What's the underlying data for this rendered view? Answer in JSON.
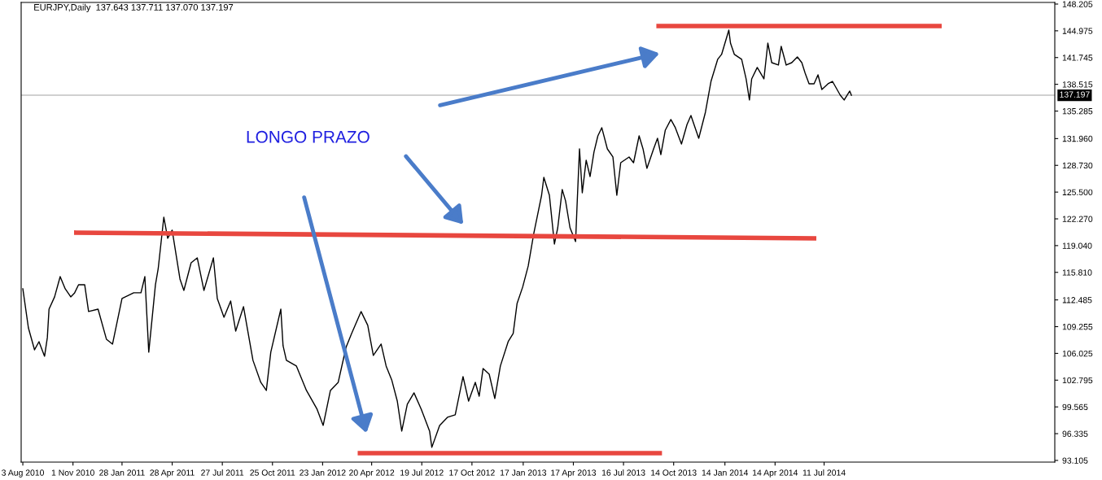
{
  "chart_data": {
    "type": "line",
    "title": "EURJPY,Daily  137.643 137.711 137.070 137.197",
    "annotations": [
      "LONGO PRAZO"
    ],
    "series": [
      {
        "color": "#000000",
        "x": [
          "2010-08-03",
          "2010-08-13",
          "2010-08-24",
          "2010-09-01",
          "2010-09-11",
          "2010-09-16",
          "2010-09-19",
          "2010-09-29",
          "2010-10-09",
          "2010-10-18",
          "2010-10-28",
          "2010-11-04",
          "2010-11-11",
          "2010-11-22",
          "2010-11-29",
          "2010-12-16",
          "2010-12-31",
          "2011-01-11",
          "2011-01-21",
          "2011-01-28",
          "2011-02-18",
          "2011-03-03",
          "2011-03-10",
          "2011-03-17",
          "2011-03-29",
          "2011-04-03",
          "2011-04-13",
          "2011-04-20",
          "2011-04-28",
          "2011-05-12",
          "2011-05-19",
          "2011-06-01",
          "2011-06-12",
          "2011-06-24",
          "2011-07-11",
          "2011-07-18",
          "2011-07-30",
          "2011-08-11",
          "2011-08-20",
          "2011-09-03",
          "2011-09-20",
          "2011-10-04",
          "2011-10-14",
          "2011-10-22",
          "2011-11-09",
          "2011-11-13",
          "2011-11-19",
          "2011-12-07",
          "2011-12-25",
          "2012-01-13",
          "2012-01-24",
          "2012-02-06",
          "2012-02-20",
          "2012-03-05",
          "2012-03-15",
          "2012-04-01",
          "2012-04-13",
          "2012-04-23",
          "2012-05-07",
          "2012-05-16",
          "2012-05-26",
          "2012-06-05",
          "2012-06-13",
          "2012-06-23",
          "2012-07-05",
          "2012-07-18",
          "2012-08-02",
          "2012-08-06",
          "2012-08-20",
          "2012-09-03",
          "2012-09-17",
          "2012-10-01",
          "2012-10-11",
          "2012-10-23",
          "2012-10-30",
          "2012-11-06",
          "2012-11-17",
          "2012-11-27",
          "2012-12-07",
          "2012-12-21",
          "2012-12-30",
          "2013-01-06",
          "2013-01-16",
          "2013-01-26",
          "2013-02-05",
          "2013-02-19",
          "2013-02-23",
          "2013-03-05",
          "2013-03-14",
          "2013-03-20",
          "2013-03-28",
          "2013-04-03",
          "2013-04-11",
          "2013-04-21",
          "2013-04-24",
          "2013-04-28",
          "2013-05-03",
          "2013-05-10",
          "2013-05-17",
          "2013-05-24",
          "2013-05-31",
          "2013-06-07",
          "2013-06-17",
          "2013-06-27",
          "2013-07-04",
          "2013-07-11",
          "2013-07-26",
          "2013-08-03",
          "2013-08-13",
          "2013-08-20",
          "2013-08-27",
          "2013-09-08",
          "2013-09-15",
          "2013-09-21",
          "2013-09-29",
          "2013-10-09",
          "2013-10-17",
          "2013-10-28",
          "2013-11-07",
          "2013-11-14",
          "2013-11-28",
          "2013-12-10",
          "2013-12-20",
          "2014-01-01",
          "2014-01-08",
          "2014-01-21",
          "2014-01-24",
          "2014-01-31",
          "2014-02-13",
          "2014-02-21",
          "2014-02-27",
          "2014-03-03",
          "2014-03-13",
          "2014-03-25",
          "2014-04-01",
          "2014-04-08",
          "2014-04-20",
          "2014-04-25",
          "2014-05-04",
          "2014-05-14",
          "2014-05-24",
          "2014-06-01",
          "2014-06-07",
          "2014-06-14",
          "2014-06-23",
          "2014-06-30",
          "2014-07-07",
          "2014-07-18",
          "2014-07-26",
          "2014-08-09",
          "2014-08-16",
          "2014-08-26",
          "2014-08-29"
        ],
        "values": [
          113.83,
          109.11,
          106.46,
          107.44,
          105.68,
          107.94,
          111.37,
          112.85,
          115.3,
          113.83,
          112.85,
          113.34,
          114.32,
          114.32,
          111.08,
          111.37,
          107.74,
          107.15,
          110.39,
          112.65,
          113.34,
          113.34,
          115.3,
          106.17,
          114.32,
          116.28,
          122.47,
          119.92,
          120.9,
          115.01,
          113.63,
          116.97,
          117.56,
          113.63,
          117.56,
          112.65,
          110.39,
          112.35,
          108.72,
          111.67,
          105.19,
          102.53,
          101.55,
          106.17,
          111.37,
          106.95,
          105.19,
          104.5,
          101.55,
          99.29,
          97.33,
          101.55,
          102.53,
          106.75,
          108.43,
          111.08,
          109.41,
          105.78,
          107.15,
          104.5,
          102.83,
          100.27,
          96.64,
          99.88,
          101.26,
          99.29,
          96.64,
          94.68,
          97.33,
          98.31,
          98.61,
          103.22,
          100.27,
          102.53,
          100.86,
          104.2,
          103.51,
          100.57,
          104.5,
          107.44,
          108.43,
          112.06,
          114.03,
          116.58,
          120.51,
          125.12,
          127.28,
          125.12,
          119.23,
          121.19,
          125.81,
          124.44,
          121.19,
          119.53,
          124.44,
          130.72,
          125.42,
          129.35,
          127.38,
          130.33,
          132.29,
          133.28,
          130.72,
          129.74,
          125.12,
          129.05,
          129.74,
          129.05,
          132.29,
          130.72,
          128.37,
          130.72,
          132.0,
          130.03,
          132.98,
          134.26,
          133.28,
          131.31,
          133.67,
          134.75,
          132.0,
          135.14,
          138.87,
          141.53,
          142.12,
          145.06,
          143.49,
          142.12,
          141.53,
          139.17,
          136.62,
          139.17,
          140.55,
          139.17,
          143.49,
          141.13,
          140.84,
          143.1,
          140.84,
          141.13,
          141.82,
          141.13,
          139.86,
          138.58,
          138.58,
          139.66,
          137.89,
          138.58,
          138.87,
          137.2,
          136.62,
          137.7,
          137.2
        ]
      },
      {
        "color": "#e8473f",
        "x": [
          "2013-09-17",
          "2015-02-03"
        ],
        "values": [
          145.55,
          145.55
        ]
      },
      {
        "color": "#e8473f",
        "x": [
          "2010-11-07",
          "2014-06-23"
        ],
        "values": [
          120.61,
          119.92
        ]
      },
      {
        "color": "#e8473f",
        "x": [
          "2012-03-30",
          "2013-09-19"
        ],
        "values": [
          93.99,
          93.99
        ]
      }
    ],
    "ref_lines": [
      {
        "axis": "y",
        "value": 137.197,
        "label": "137.197",
        "color": "#c0c0c0"
      }
    ],
    "xlim": [
      "2010-07-31",
      "2015-08-29"
    ],
    "xticks": [
      {
        "value": "2010-08-03",
        "label": "3 Aug 2010"
      },
      {
        "value": "2010-11-01",
        "label": "1 Nov 2010"
      },
      {
        "value": "2011-01-28",
        "label": "28 Jan 2011"
      },
      {
        "value": "2011-04-28",
        "label": "28 Apr 2011"
      },
      {
        "value": "2011-07-27",
        "label": "27 Jul 2011"
      },
      {
        "value": "2011-10-25",
        "label": "25 Oct 2011"
      },
      {
        "value": "2012-01-23",
        "label": "23 Jan 2012"
      },
      {
        "value": "2012-04-20",
        "label": "20 Apr 2012"
      },
      {
        "value": "2012-07-19",
        "label": "19 Jul 2012"
      },
      {
        "value": "2012-10-17",
        "label": "17 Oct 2012"
      },
      {
        "value": "2013-01-17",
        "label": "17 Jan 2013"
      },
      {
        "value": "2013-04-17",
        "label": "17 Apr 2013"
      },
      {
        "value": "2013-07-16",
        "label": "16 Jul 2013"
      },
      {
        "value": "2013-10-14",
        "label": "14 Oct 2013"
      },
      {
        "value": "2014-01-14",
        "label": "14 Jan 2014"
      },
      {
        "value": "2014-04-14",
        "label": "14 Apr 2014"
      },
      {
        "value": "2014-07-11",
        "label": "11 Jul 2014"
      }
    ],
    "ylim": [
      92.9,
      148.4
    ],
    "yticks": [
      {
        "value": 93.105,
        "label": "93.105"
      },
      {
        "value": 96.335,
        "label": "96.335"
      },
      {
        "value": 99.565,
        "label": "99.565"
      },
      {
        "value": 102.795,
        "label": "102.795"
      },
      {
        "value": 106.025,
        "label": "106.025"
      },
      {
        "value": 109.255,
        "label": "109.255"
      },
      {
        "value": 112.485,
        "label": "112.485"
      },
      {
        "value": 115.81,
        "label": "115.810"
      },
      {
        "value": 119.04,
        "label": "119.040"
      },
      {
        "value": 122.27,
        "label": "122.270"
      },
      {
        "value": 125.5,
        "label": "125.500"
      },
      {
        "value": 128.73,
        "label": "128.730"
      },
      {
        "value": 131.96,
        "label": "131.960"
      },
      {
        "value": 135.285,
        "label": "135.285"
      },
      {
        "value": 138.515,
        "label": "138.515"
      },
      {
        "value": 141.745,
        "label": "141.745"
      },
      {
        "value": 144.975,
        "label": "144.975"
      },
      {
        "value": 148.205,
        "label": "148.205"
      }
    ],
    "grid": false,
    "legend": false,
    "marker": "none",
    "line_style": "solid"
  }
}
